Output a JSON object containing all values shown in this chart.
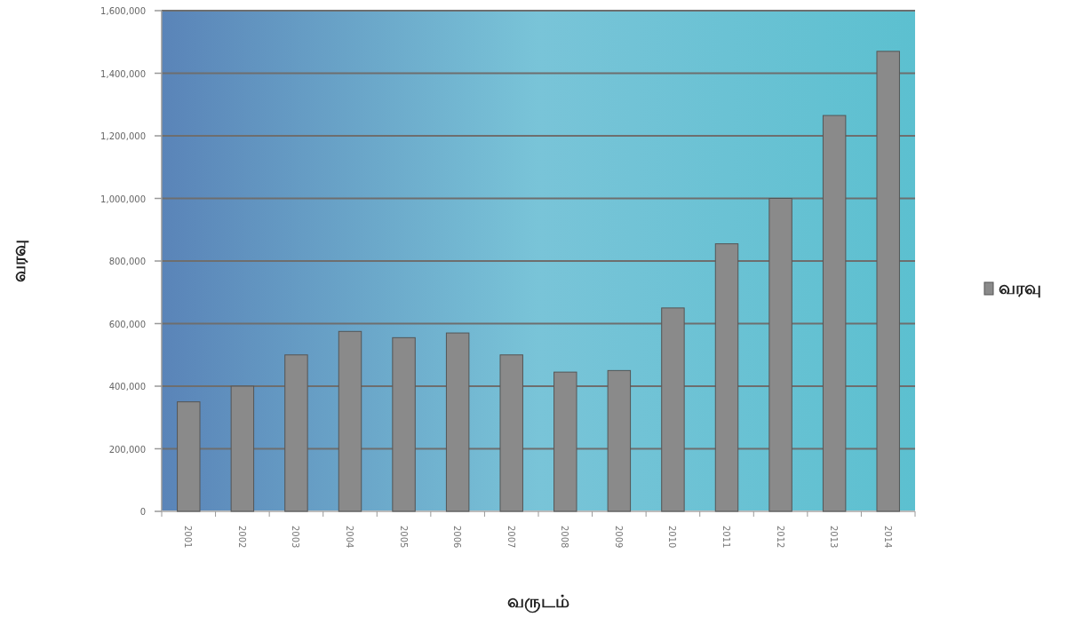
{
  "chart_data": {
    "type": "bar",
    "xlabel": "வருடம்",
    "ylabel": "வரவு",
    "categories": [
      "2001",
      "2002",
      "2003",
      "2004",
      "2005",
      "2006",
      "2007",
      "2008",
      "2009",
      "2010",
      "2011",
      "2012",
      "2013",
      "2014"
    ],
    "series": [
      {
        "name": "வரவு",
        "color": "#8a8a8a",
        "values": [
          350000,
          400000,
          500000,
          575000,
          555000,
          570000,
          500000,
          445000,
          450000,
          650000,
          855000,
          1000000,
          1265000,
          1470000
        ]
      }
    ],
    "ylim": [
      0,
      1600000
    ],
    "yticks": [
      {
        "value": 0,
        "label": "0"
      },
      {
        "value": 200000,
        "label": "200,000"
      },
      {
        "value": 400000,
        "label": "400,000"
      },
      {
        "value": 600000,
        "label": "600,000"
      },
      {
        "value": 800000,
        "label": "800,000"
      },
      {
        "value": 1000000,
        "label": "1,000,000"
      },
      {
        "value": 1200000,
        "label": "1,200,000"
      },
      {
        "value": 1400000,
        "label": "1,400,000"
      },
      {
        "value": 1600000,
        "label": "1,600,000"
      }
    ],
    "grid": "y",
    "legend": "right"
  }
}
